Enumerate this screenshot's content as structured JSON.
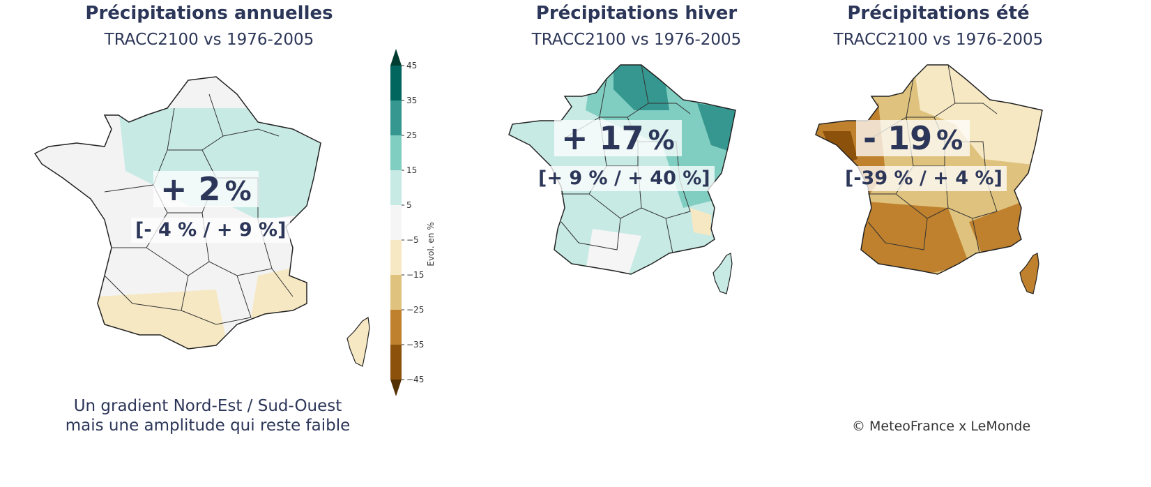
{
  "panels": [
    {
      "title": "Précipitations annuelles",
      "subtitle": "TRACC2100 vs 1976-2005",
      "value": "+ 2",
      "unit": "%",
      "range": "[- 4 % / + 9 %]",
      "value_percent": 2,
      "range_min_percent": -4,
      "range_max_percent": 9
    },
    {
      "title": "Précipitations hiver",
      "subtitle": "TRACC2100 vs 1976-2005",
      "value": "+ 17",
      "unit": "%",
      "range": "[+ 9 % / + 40 %]",
      "value_percent": 17,
      "range_min_percent": 9,
      "range_max_percent": 40
    },
    {
      "title": "Précipitations été",
      "subtitle": "TRACC2100 vs 1976-2005",
      "value": "- 19",
      "unit": "%",
      "range": "[-39 % / + 4 %]",
      "value_percent": -19,
      "range_min_percent": -39,
      "range_max_percent": 4
    }
  ],
  "colorbar": {
    "label": "Evol. en %",
    "ticks": [
      "45",
      "35",
      "25",
      "15",
      "5",
      "−5",
      "−15",
      "−25",
      "−35",
      "−45"
    ],
    "colors": [
      "#01665e",
      "#35978f",
      "#80cdc1",
      "#c7eae5",
      "#f5f5f5",
      "#f6e8c3",
      "#dfc27d",
      "#bf812d",
      "#8c510a"
    ],
    "extend_top_color": "#003c30",
    "extend_bottom_color": "#543005"
  },
  "caption": {
    "line1": "Un gradient Nord-Est / Sud-Ouest",
    "line2": "mais une amplitude qui reste faible"
  },
  "credit": "© MeteoFrance x LeMonde",
  "colors": {
    "text": "#2c3658",
    "border": "#222222"
  }
}
